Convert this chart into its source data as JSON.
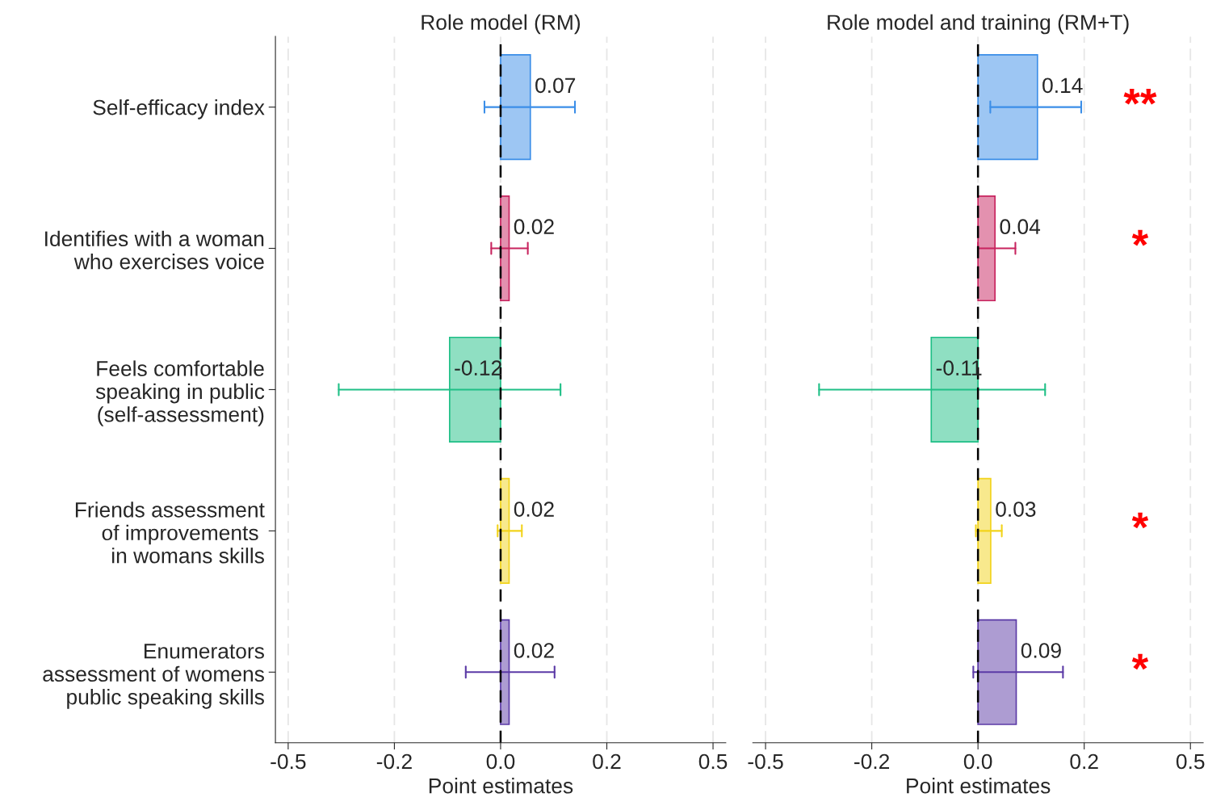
{
  "chart_data": [
    {
      "type": "bar",
      "orientation": "horizontal",
      "title": "Role model (RM)",
      "xlabel": "Point estimates",
      "categories": [
        "Self-efficacy index",
        "Identifies with a woman\nwho exercises voice",
        "Feels comfortable\nspeaking in public\n(self-assessment)",
        "Friends assessment\nof improvements \nin womans skills",
        "Enumerators\nassessment of womens\npublic speaking skills"
      ],
      "values": [
        0.07,
        0.02,
        -0.12,
        0.02,
        0.02
      ],
      "xticks": [
        {
          "value": -0.5,
          "label": "-0.5"
        },
        {
          "value": -0.25,
          "label": "-0.2"
        },
        {
          "value": 0,
          "label": "0.0"
        },
        {
          "value": 0.25,
          "label": "0.2"
        },
        {
          "value": 0.5,
          "label": "0.5"
        }
      ],
      "value_labels": [
        "0.07",
        "0.02",
        "-0.12",
        "0.02",
        "0.02"
      ],
      "errors": [
        [
          -0.038,
          0.175
        ],
        [
          -0.022,
          0.064
        ],
        [
          -0.381,
          0.141
        ],
        [
          -0.007,
          0.05
        ],
        [
          -0.082,
          0.127
        ]
      ],
      "colors": [
        "#3b8ee8",
        "#c8245f",
        "#1fbf86",
        "#f2d31b",
        "#5b3aa6"
      ],
      "xlim": [
        -0.53,
        0.53
      ],
      "grid": "x",
      "ref_lines": [
        {
          "axis": "x",
          "value": 0,
          "color": "#000000",
          "line_style": "dashed"
        }
      ]
    },
    {
      "type": "bar",
      "orientation": "horizontal",
      "title": "Role model and training (RM+T)",
      "xlabel": "Point estimates",
      "categories": [
        null,
        null,
        null,
        null,
        null
      ],
      "values": [
        0.14,
        0.04,
        -0.11,
        0.03,
        0.09
      ],
      "xticks": [
        {
          "value": -0.5,
          "label": "-0.5"
        },
        {
          "value": -0.25,
          "label": "-0.2"
        },
        {
          "value": 0,
          "label": "0.0"
        },
        {
          "value": 0.25,
          "label": "0.2"
        },
        {
          "value": 0.5,
          "label": "0.5"
        }
      ],
      "value_labels": [
        "0.14",
        "0.04",
        "-0.11",
        "0.03",
        "0.09"
      ],
      "errors": [
        [
          0.029,
          0.243
        ],
        [
          0.0,
          0.088
        ],
        [
          -0.374,
          0.158
        ],
        [
          -0.005,
          0.056
        ],
        [
          -0.011,
          0.2
        ]
      ],
      "colors": [
        "#3b8ee8",
        "#c8245f",
        "#1fbf86",
        "#f2d31b",
        "#5b3aa6"
      ],
      "xlim": [
        -0.53,
        0.53
      ],
      "tick_labels": "x",
      "grid": "x",
      "ref_lines": [
        {
          "axis": "x",
          "value": 0,
          "color": "#000000",
          "line_style": "dashed"
        }
      ],
      "annotations": [
        "**",
        "*",
        null,
        "*",
        "*"
      ]
    }
  ]
}
